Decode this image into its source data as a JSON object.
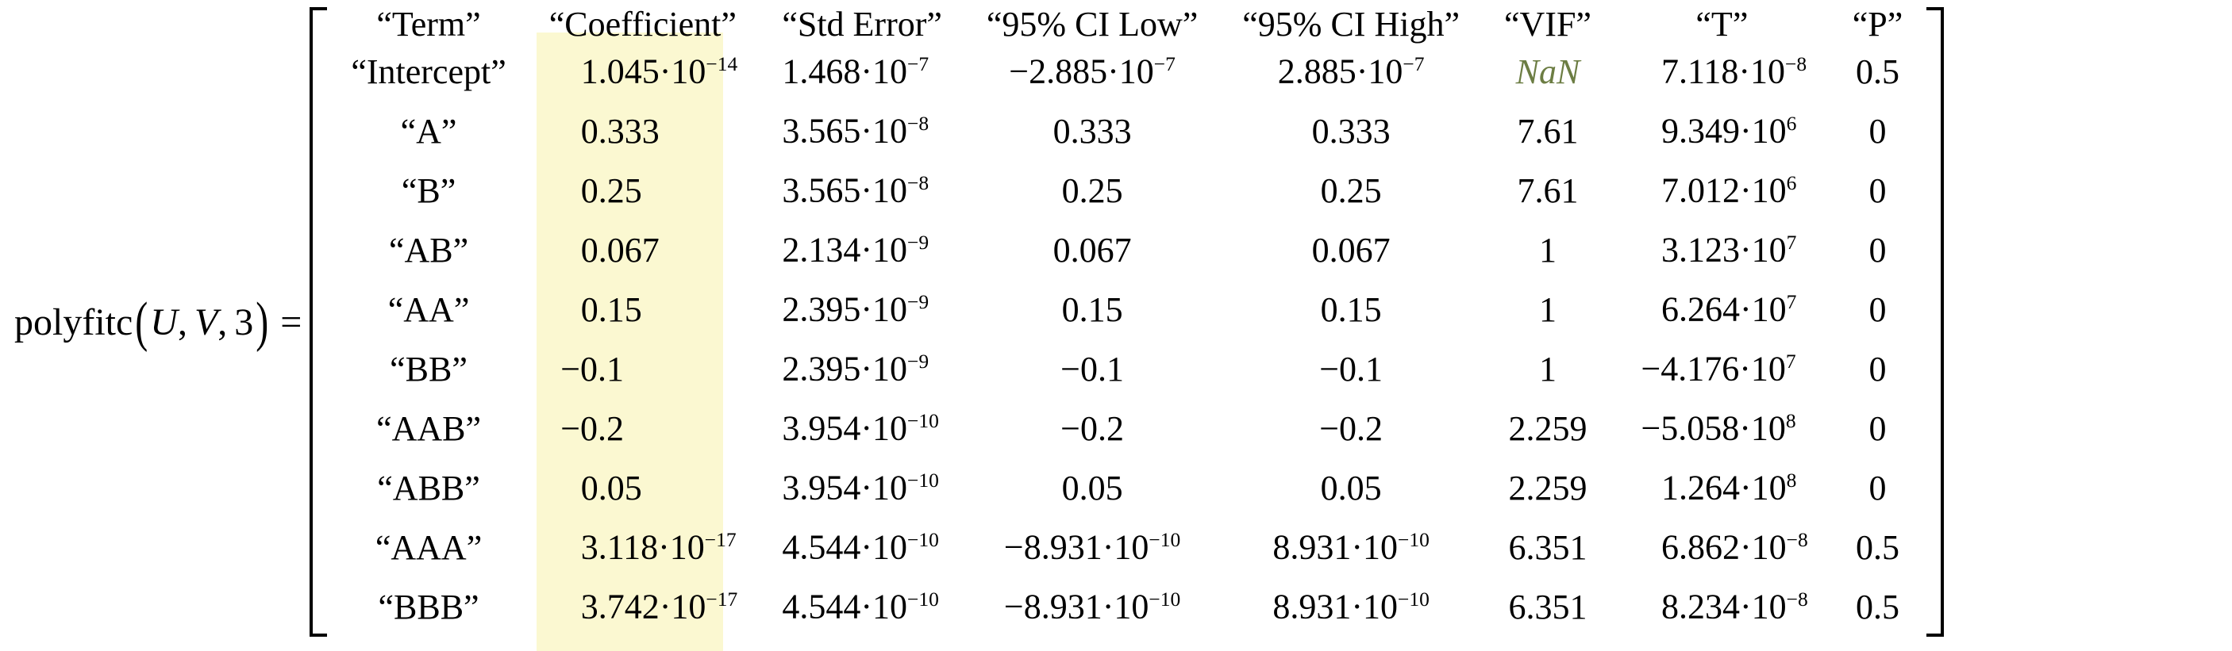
{
  "colors": {
    "background": "#FFFFFF",
    "text": "#000000",
    "highlight": "#FBF8D1",
    "nan_text": "#6C7D43"
  },
  "equation": {
    "function_name": "polyfitc",
    "lparen": "(",
    "arg1": "U",
    "comma1": ",",
    "arg2": "V",
    "comma2": ",",
    "arg3": "3",
    "rparen": ")",
    "equals": "="
  },
  "matrix": {
    "headers": [
      "“Term”",
      "“Coefficient”",
      "“Std Error”",
      "“95% CI Low”",
      "“95% CI High”",
      "“VIF”",
      "“T”",
      "“P”"
    ],
    "rows": [
      [
        "“Intercept”",
        "1.045·10^−14",
        "1.468·10^−7",
        "−2.885·10^−7",
        "2.885·10^−7",
        "NaN",
        "7.118·10^−8",
        "0.5"
      ],
      [
        "“A”",
        "0.333",
        "3.565·10^−8",
        "0.333",
        "0.333",
        "7.61",
        "9.349·10^6",
        "0"
      ],
      [
        "“B”",
        "0.25",
        "3.565·10^−8",
        "0.25",
        "0.25",
        "7.61",
        "7.012·10^6",
        "0"
      ],
      [
        "“AB”",
        "0.067",
        "2.134·10^−9",
        "0.067",
        "0.067",
        "1",
        "3.123·10^7",
        "0"
      ],
      [
        "“AA”",
        "0.15",
        "2.395·10^−9",
        "0.15",
        "0.15",
        "1",
        "6.264·10^7",
        "0"
      ],
      [
        "“BB”",
        "−0.1",
        "2.395·10^−9",
        "−0.1",
        "−0.1",
        "1",
        "−4.176·10^7",
        "0"
      ],
      [
        "“AAB”",
        "−0.2",
        "3.954·10^−10",
        "−0.2",
        "−0.2",
        "2.259",
        "−5.058·10^8",
        "0"
      ],
      [
        "“ABB”",
        "0.05",
        "3.954·10^−10",
        "0.05",
        "0.05",
        "2.259",
        "1.264·10^8",
        "0"
      ],
      [
        "“AAA”",
        "3.118·10^−17",
        "4.544·10^−10",
        "−8.931·10^−10",
        "8.931·10^−10",
        "6.351",
        "6.862·10^−8",
        "0.5"
      ],
      [
        "“BBB”",
        "3.742·10^−17",
        "4.544·10^−10",
        "−8.931·10^−10",
        "8.931·10^−10",
        "6.351",
        "8.234·10^−8",
        "0.5"
      ]
    ]
  }
}
